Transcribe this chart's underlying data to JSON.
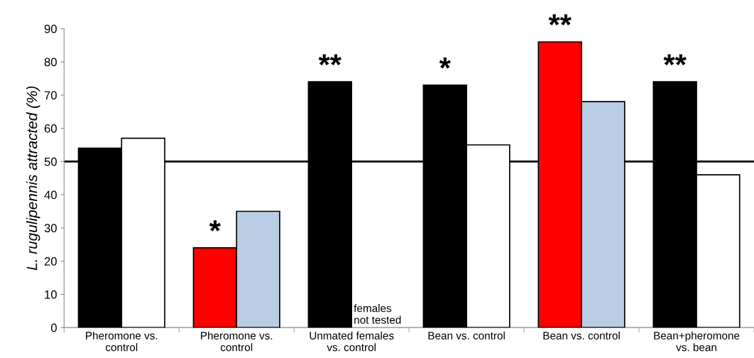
{
  "chart_data": {
    "type": "bar",
    "ylabel": "L. rugulipennis attracted (%)",
    "categories": [
      "Pheromone vs.\ncontrol",
      "Pheromone vs.\ncontrol",
      "Unmated females\nvs. control",
      "Bean vs. control",
      "Bean vs. control",
      "Bean+pheromone\nvs. bean"
    ],
    "series": [
      {
        "colors": [
          "#000000",
          "#ff0000",
          "#000000",
          "#000000",
          "#ff0000",
          "#000000"
        ],
        "values": [
          54,
          24,
          74,
          73,
          86,
          74
        ],
        "value_labels": [
          null,
          "*",
          "**",
          "*",
          "**",
          "**"
        ]
      },
      {
        "colors": [
          "#ffffff",
          "#b9cde5",
          null,
          "#ffffff",
          "#b9cde5",
          "#ffffff"
        ],
        "values": [
          57,
          35,
          null,
          55,
          68,
          46
        ]
      }
    ],
    "ylim": [
      0,
      90
    ],
    "yticks": [
      0,
      10,
      20,
      30,
      40,
      50,
      60,
      70,
      80,
      90
    ],
    "grid": false,
    "legend": false,
    "ref_lines": [
      {
        "axis": "y",
        "value": 50,
        "color": "#000000",
        "line_style": "solid"
      }
    ],
    "annotations": [
      {
        "text": "females\nnot tested",
        "x": "Unmated females\nvs. control",
        "y": 0
      }
    ]
  }
}
